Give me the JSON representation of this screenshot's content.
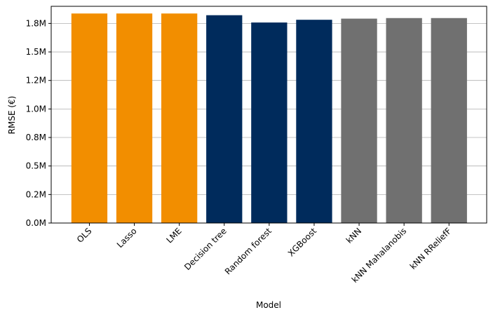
{
  "chart_data": {
    "type": "bar",
    "categories": [
      "OLS",
      "Lasso",
      "LME",
      "Decision tree",
      "Random forest",
      "XGBoost",
      "kNN",
      "kNN Mahalanobis",
      "kNN RReliefF"
    ],
    "values": [
      1837000,
      1837000,
      1837000,
      1822000,
      1758000,
      1782000,
      1792000,
      1797000,
      1797000
    ],
    "colors": [
      "#f28e00",
      "#f28e00",
      "#f28e00",
      "#002b5c",
      "#002b5c",
      "#002b5c",
      "#707070",
      "#707070",
      "#707070"
    ],
    "title": "",
    "xlabel": "Model",
    "ylabel": "RMSE (€)",
    "ylim": [
      0,
      1900000
    ],
    "yticks": [
      0,
      250000,
      500000,
      750000,
      1000000,
      1250000,
      1500000,
      1750000
    ],
    "ytick_labels": [
      "0.0M",
      "0.2M",
      "0.5M",
      "0.8M",
      "1.0M",
      "1.2M",
      "1.5M",
      "1.8M"
    ],
    "grid": "y",
    "legend": "none"
  }
}
